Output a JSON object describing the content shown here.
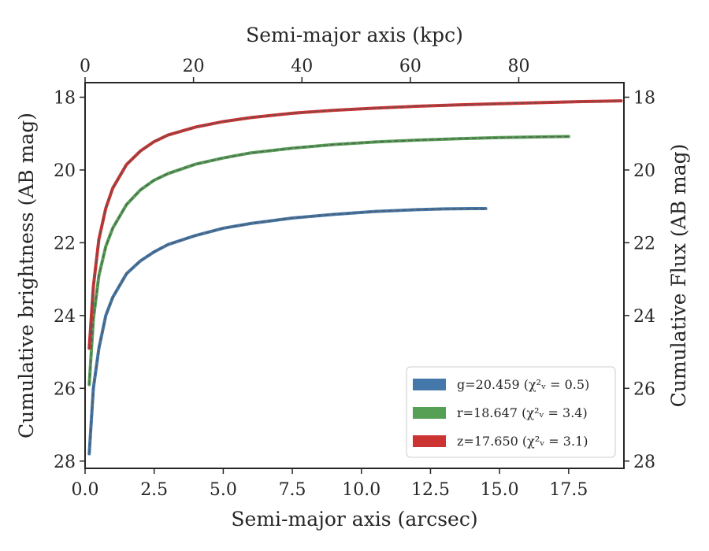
{
  "chart_data": {
    "type": "line",
    "xlabel": "Semi-major axis (arcsec)",
    "ylabel": "Cumulative brightness (AB mag)",
    "x2label": "Semi-major axis (kpc)",
    "y2label": "Cumulative Flux (AB mag)",
    "xlim": [
      0,
      19.5
    ],
    "ylim": [
      28.2,
      17.6
    ],
    "x2lim": [
      0,
      99.4
    ],
    "y_inverted": true,
    "x_ticks": [
      "0.0",
      "2.5",
      "5.0",
      "7.5",
      "10.0",
      "12.5",
      "15.0",
      "17.5"
    ],
    "x2_ticks": [
      "0",
      "20",
      "40",
      "60",
      "80"
    ],
    "y_ticks": [
      "18",
      "20",
      "22",
      "24",
      "26",
      "28"
    ],
    "legend_position": "lower-right",
    "grid": false,
    "series": [
      {
        "name": "g=20.459 (χ²ᵥ = 0.5)",
        "color": "#4477aa",
        "x": [
          0.15,
          0.3,
          0.5,
          0.75,
          1.0,
          1.5,
          2.0,
          2.5,
          3.0,
          4.0,
          5.0,
          6.0,
          7.5,
          9.0,
          10.5,
          12.0,
          13.0,
          14.0,
          14.5
        ],
        "y": [
          27.8,
          26.0,
          24.9,
          24.0,
          23.5,
          22.85,
          22.5,
          22.25,
          22.05,
          21.8,
          21.6,
          21.47,
          21.32,
          21.22,
          21.14,
          21.09,
          21.07,
          21.06,
          21.06
        ]
      },
      {
        "name": "r=18.647 (χ²ᵥ = 3.4)",
        "color": "#55a055",
        "x": [
          0.15,
          0.3,
          0.5,
          0.75,
          1.0,
          1.5,
          2.0,
          2.5,
          3.0,
          4.0,
          5.0,
          6.0,
          7.5,
          9.0,
          10.5,
          12.0,
          13.5,
          15.0,
          16.5,
          17.5
        ],
        "y": [
          25.9,
          24.1,
          22.9,
          22.1,
          21.6,
          20.95,
          20.55,
          20.28,
          20.1,
          19.84,
          19.67,
          19.53,
          19.4,
          19.3,
          19.23,
          19.18,
          19.14,
          19.11,
          19.09,
          19.08
        ]
      },
      {
        "name": "z=17.650 (χ²ᵥ = 3.1)",
        "color": "#cc3333",
        "x": [
          0.15,
          0.3,
          0.5,
          0.75,
          1.0,
          1.5,
          2.0,
          2.5,
          3.0,
          4.0,
          5.0,
          6.0,
          7.5,
          9.0,
          10.5,
          12.0,
          13.5,
          15.0,
          16.5,
          18.0,
          19.4
        ],
        "y": [
          24.9,
          23.2,
          21.9,
          21.05,
          20.5,
          19.85,
          19.48,
          19.22,
          19.04,
          18.82,
          18.67,
          18.56,
          18.44,
          18.36,
          18.3,
          18.25,
          18.21,
          18.18,
          18.15,
          18.12,
          18.1
        ]
      }
    ]
  }
}
